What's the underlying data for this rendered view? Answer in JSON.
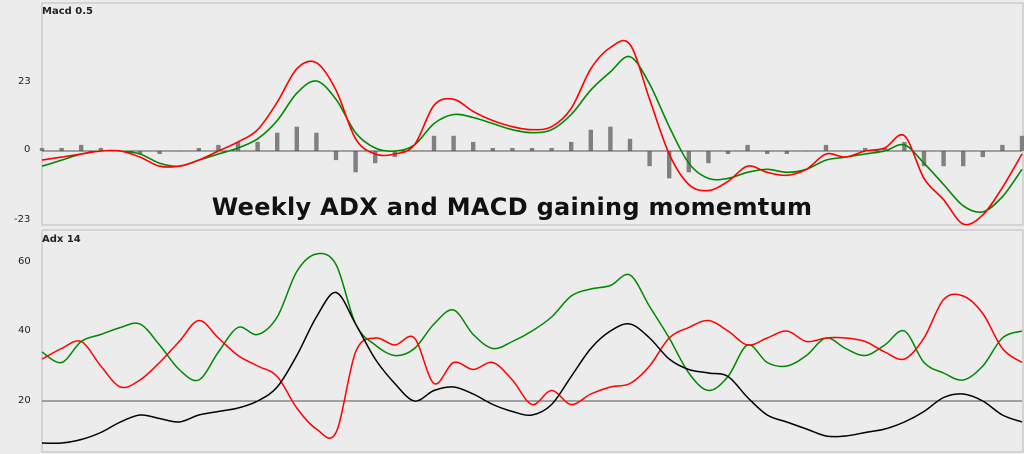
{
  "headline": "Weekly ADX and MACD gaining momemtum",
  "chart_data": [
    {
      "type": "line",
      "title": "Macd 0.5",
      "y_ticks": [
        "23",
        "0",
        "-23"
      ],
      "ylim": [
        -23,
        38
      ],
      "colors": {
        "macd": "#ff0000",
        "signal": "#008800",
        "histogram": "#808080",
        "zero_line": "#555555"
      },
      "x": [
        0,
        4,
        8,
        12,
        16,
        20,
        24,
        28,
        32,
        36,
        40,
        44,
        48,
        52,
        56,
        60,
        64,
        68,
        72,
        76,
        80,
        84,
        88,
        92,
        96,
        100,
        104,
        108,
        112,
        116,
        120,
        124,
        128,
        132,
        136,
        140,
        144,
        148,
        152,
        156,
        160,
        164,
        168,
        172,
        176,
        180,
        184,
        188,
        192,
        196,
        200
      ],
      "series": [
        {
          "key": "macd",
          "values": [
            -3,
            -2,
            -1,
            0,
            0,
            -2,
            -5,
            -5,
            -3,
            0,
            3,
            7,
            16,
            27,
            29,
            20,
            4,
            -1,
            -1,
            2,
            15,
            17,
            13,
            10,
            8,
            7,
            8,
            14,
            27,
            34,
            35,
            17,
            -1,
            -11,
            -13,
            -10,
            -5,
            -7,
            -8,
            -6,
            -1,
            -2,
            0,
            1,
            5,
            -9,
            -16,
            -24,
            -21,
            -12,
            -1
          ]
        },
        {
          "key": "signal",
          "values": [
            -5,
            -3,
            -1,
            0,
            0,
            -1,
            -4,
            -5,
            -3,
            -1,
            1,
            4,
            10,
            19,
            23,
            17,
            6,
            1,
            0,
            2,
            9,
            12,
            11,
            9,
            7,
            6,
            7,
            12,
            20,
            26,
            31,
            22,
            8,
            -4,
            -9,
            -9,
            -7,
            -6,
            -7,
            -6,
            -3,
            -2,
            -1,
            0,
            2,
            -4,
            -11,
            -18,
            -20,
            -15,
            -6
          ]
        },
        {
          "key": "histogram",
          "values": [
            1,
            1,
            2,
            1,
            0,
            -1,
            -1,
            0,
            1,
            2,
            3,
            3,
            6,
            8,
            6,
            -3,
            -7,
            -4,
            -2,
            0,
            5,
            5,
            3,
            1,
            1,
            1,
            1,
            3,
            7,
            8,
            4,
            -5,
            -9,
            -7,
            -4,
            -1,
            2,
            -1,
            -1,
            0,
            2,
            0,
            1,
            1,
            3,
            -5,
            -5,
            -5,
            -2,
            2,
            5
          ]
        }
      ]
    },
    {
      "type": "line",
      "title": "Adx 14",
      "y_ticks": [
        "60",
        "40",
        "20"
      ],
      "ylim": [
        5,
        68
      ],
      "reference_level": 20,
      "colors": {
        "adx": "#000000",
        "plus_di": "#008800",
        "minus_di": "#ff0000",
        "reference_line": "#555555"
      },
      "x": [
        0,
        4,
        8,
        12,
        16,
        20,
        24,
        28,
        32,
        36,
        40,
        44,
        48,
        52,
        56,
        60,
        64,
        68,
        72,
        76,
        80,
        84,
        88,
        92,
        96,
        100,
        104,
        108,
        112,
        116,
        120,
        124,
        128,
        132,
        136,
        140,
        144,
        148,
        152,
        156,
        160,
        164,
        168,
        172,
        176,
        180,
        184,
        188,
        192,
        196,
        200
      ],
      "series": [
        {
          "key": "adx",
          "values": [
            8,
            8,
            9,
            11,
            14,
            16,
            15,
            14,
            16,
            17,
            18,
            20,
            24,
            33,
            44,
            51,
            42,
            32,
            25,
            20,
            23,
            24,
            22,
            19,
            17,
            16,
            19,
            27,
            35,
            40,
            42,
            38,
            32,
            29,
            28,
            27,
            21,
            16,
            14,
            12,
            10,
            10,
            11,
            12,
            14,
            17,
            21,
            22,
            20,
            16,
            14
          ]
        },
        {
          "key": "plus_di",
          "values": [
            34,
            31,
            37,
            39,
            41,
            42,
            36,
            29,
            26,
            34,
            41,
            39,
            44,
            57,
            62,
            59,
            42,
            36,
            33,
            35,
            42,
            46,
            39,
            35,
            37,
            40,
            44,
            50,
            52,
            53,
            56,
            47,
            38,
            28,
            23,
            27,
            36,
            31,
            30,
            33,
            38,
            35,
            33,
            36,
            40,
            31,
            28,
            26,
            30,
            38,
            40
          ]
        },
        {
          "key": "minus_di",
          "values": [
            32,
            35,
            37,
            30,
            24,
            26,
            31,
            37,
            43,
            38,
            33,
            30,
            27,
            18,
            12,
            11,
            34,
            38,
            36,
            38,
            25,
            31,
            29,
            31,
            26,
            19,
            23,
            19,
            22,
            24,
            25,
            30,
            38,
            41,
            43,
            40,
            36,
            38,
            40,
            37,
            38,
            38,
            37,
            34,
            32,
            38,
            49,
            50,
            45,
            35,
            31
          ]
        }
      ]
    }
  ]
}
